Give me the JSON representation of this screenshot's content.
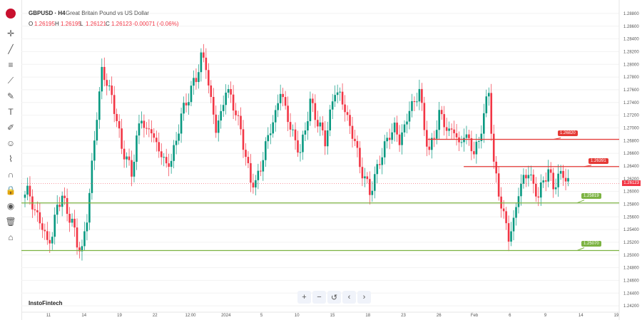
{
  "header": {
    "symbol": "GBPUSD · H4",
    "description": "Great Britain Pound vs US Dollar",
    "o_label": "O",
    "o_value": "1.26195",
    "h_label": "H",
    "h_value": "1.26195",
    "l_label": "L",
    "l_value": "1.26121",
    "c_label": "C",
    "c_value": "1.26123",
    "change": "-0.00071 (-0.06%)"
  },
  "brand": "InstoFintech",
  "toolbar": [
    "crosshair-icon",
    "trend-line-icon",
    "fib-icon",
    "node-icon",
    "brush-icon",
    "text-icon",
    "pencil-icon",
    "emoji-icon",
    "measure-icon",
    "magnet-icon",
    "lock-icon",
    "eye-icon",
    "trash-icon",
    "home-icon"
  ],
  "zoom_buttons": [
    "+",
    "−",
    "↺",
    "‹",
    "›"
  ],
  "colors": {
    "up": "#089981",
    "down": "#f23645",
    "level_red": "#e53935",
    "level_green": "#7cb342",
    "grid": "#f2f2f2"
  },
  "chart_data": {
    "type": "candlestick",
    "ylim": [
      1.241,
      1.289
    ],
    "y_ticks": [
      "1.28800",
      "1.28600",
      "1.28400",
      "1.28200",
      "1.28000",
      "1.27800",
      "1.27600",
      "1.27400",
      "1.27200",
      "1.27000",
      "1.26800",
      "1.26600",
      "1.26400",
      "1.26200",
      "1.26000",
      "1.25800",
      "1.25600",
      "1.25400",
      "1.25200",
      "1.25000",
      "1.24800",
      "1.24600",
      "1.24400",
      "1.24200"
    ],
    "x_ticks": [
      "11",
      "14",
      "19",
      "22",
      "12:00",
      "2024",
      "5",
      "10",
      "15",
      "18",
      "23",
      "26",
      "Feb",
      "6",
      "9",
      "14",
      "19"
    ],
    "last_price": "1.26123",
    "last_price_value": 1.26123,
    "levels": [
      {
        "label": "1.26820",
        "value": 1.2682,
        "color": "red",
        "from": 0.68
      },
      {
        "label": "1.26391",
        "value": 1.26391,
        "color": "red",
        "from": 0.74
      },
      {
        "label": "1.25819",
        "value": 1.25819,
        "color": "green",
        "from": 0.0
      },
      {
        "label": "1.25070",
        "value": 1.2507,
        "color": "green",
        "from": 0.0
      }
    ],
    "close_path": [
      1.26,
      1.258,
      1.256,
      1.2545,
      1.252,
      1.253,
      1.258,
      1.259,
      1.257,
      1.255,
      1.252,
      1.2505,
      1.256,
      1.264,
      1.272,
      1.279,
      1.277,
      1.275,
      1.271,
      1.267,
      1.265,
      1.263,
      1.268,
      1.272,
      1.269,
      1.27,
      1.267,
      1.266,
      1.264,
      1.265,
      1.268,
      1.272,
      1.274,
      1.276,
      1.278,
      1.281,
      1.28,
      1.274,
      1.27,
      1.272,
      1.276,
      1.275,
      1.272,
      1.27,
      1.265,
      1.262,
      1.261,
      1.264,
      1.267,
      1.27,
      1.272,
      1.276,
      1.273,
      1.27,
      1.268,
      1.266,
      1.27,
      1.274,
      1.272,
      1.27,
      1.268,
      1.272,
      1.276,
      1.275,
      1.273,
      1.27,
      1.268,
      1.264,
      1.262,
      1.26,
      1.262,
      1.265,
      1.267,
      1.269,
      1.27,
      1.268,
      1.27,
      1.273,
      1.274,
      1.276,
      1.27,
      1.266,
      1.269,
      1.272,
      1.271,
      1.269,
      1.27,
      1.267,
      1.269,
      1.268,
      1.266,
      1.268,
      1.272,
      1.276,
      1.264,
      1.26,
      1.256,
      1.253,
      1.255,
      1.26,
      1.262,
      1.263,
      1.261,
      1.259,
      1.262,
      1.263,
      1.261,
      1.262,
      1.263,
      1.2612
    ]
  }
}
